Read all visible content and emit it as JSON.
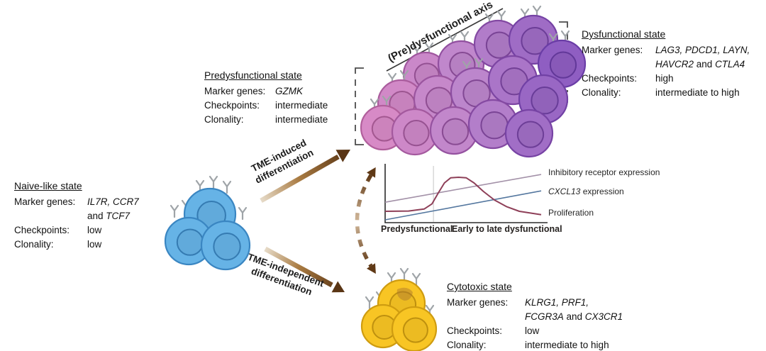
{
  "figure": {
    "axis_label": "(Pre)dysfunctional axis",
    "arrows": {
      "tme_induced": "TME-induced differentiation",
      "tme_independent": "TME-independent differentiation"
    }
  },
  "states": [
    {
      "id": "naive",
      "title": "Naive-like state",
      "rows": [
        {
          "label": "Marker genes:",
          "lines": [
            [
              {
                "t": "IL7R, CCR7",
                "i": true
              }
            ],
            [
              {
                "t": "and ",
                "i": false
              },
              {
                "t": "TCF7",
                "i": true
              }
            ]
          ]
        },
        {
          "label": "Checkpoints:",
          "lines": [
            [
              {
                "t": "low",
                "i": false
              }
            ]
          ]
        },
        {
          "label": "Clonality:",
          "lines": [
            [
              {
                "t": "low",
                "i": false
              }
            ]
          ]
        }
      ]
    },
    {
      "id": "predysfunctional",
      "title": "Predysfunctional state",
      "rows": [
        {
          "label": "Marker genes:",
          "lines": [
            [
              {
                "t": "GZMK",
                "i": true
              }
            ]
          ]
        },
        {
          "label": "Checkpoints:",
          "lines": [
            [
              {
                "t": "intermediate",
                "i": false
              }
            ]
          ]
        },
        {
          "label": "Clonality:",
          "lines": [
            [
              {
                "t": "intermediate",
                "i": false
              }
            ]
          ]
        }
      ]
    },
    {
      "id": "dysfunctional",
      "title": "Dysfunctional state",
      "rows": [
        {
          "label": "Marker genes:",
          "lines": [
            [
              {
                "t": "LAG3, PDCD1, LAYN,",
                "i": true
              }
            ],
            [
              {
                "t": "HAVCR2",
                "i": true
              },
              {
                "t": " and ",
                "i": false
              },
              {
                "t": "CTLA4",
                "i": true
              }
            ]
          ]
        },
        {
          "label": "Checkpoints:",
          "lines": [
            [
              {
                "t": "high",
                "i": false
              }
            ]
          ]
        },
        {
          "label": "Clonality:",
          "lines": [
            [
              {
                "t": "intermediate to high",
                "i": false
              }
            ]
          ]
        }
      ]
    },
    {
      "id": "cytotoxic",
      "title": "Cytotoxic state",
      "rows": [
        {
          "label": "Marker genes:",
          "lines": [
            [
              {
                "t": "KLRG1, PRF1,",
                "i": true
              }
            ],
            [
              {
                "t": "FCGR3A",
                "i": true
              },
              {
                "t": " and ",
                "i": false
              },
              {
                "t": "CX3CR1",
                "i": true
              }
            ]
          ]
        },
        {
          "label": "Checkpoints:",
          "lines": [
            [
              {
                "t": "low",
                "i": false
              }
            ]
          ]
        },
        {
          "label": "Clonality:",
          "lines": [
            [
              {
                "t": "intermediate to high",
                "i": false
              }
            ]
          ]
        }
      ]
    }
  ],
  "chart_data": {
    "type": "line",
    "x_axis_labels": [
      "Predysfunctional",
      "Early to late dysfunctional"
    ],
    "divider_x": 0.31,
    "grid": false,
    "legend_position": "right",
    "series": [
      {
        "name": "Inhibitory receptor expression",
        "name_segments": [
          {
            "t": "Inhibitory receptor expression",
            "i": false
          }
        ],
        "color": "#a391a8",
        "trend": "linear increase",
        "points": [
          [
            0,
            0.36
          ],
          [
            1,
            0.85
          ]
        ]
      },
      {
        "name": "CXCL13 expression",
        "name_segments": [
          {
            "t": "CXCL13",
            "i": true
          },
          {
            "t": " expression",
            "i": false
          }
        ],
        "color": "#54779f",
        "trend": "linear increase",
        "points": [
          [
            0,
            0.05
          ],
          [
            1,
            0.56
          ]
        ]
      },
      {
        "name": "Proliferation",
        "name_segments": [
          {
            "t": "Proliferation",
            "i": false
          }
        ],
        "color": "#8e3f58",
        "trend": "low early, peak in early dysfunctional, decline in late dysfunctional",
        "points": [
          [
            0,
            0.2
          ],
          [
            0.15,
            0.205
          ],
          [
            0.25,
            0.24
          ],
          [
            0.3,
            0.33
          ],
          [
            0.34,
            0.52
          ],
          [
            0.38,
            0.7
          ],
          [
            0.42,
            0.79
          ],
          [
            0.47,
            0.8
          ],
          [
            0.52,
            0.79
          ],
          [
            0.57,
            0.7
          ],
          [
            0.63,
            0.55
          ],
          [
            0.7,
            0.4
          ],
          [
            0.78,
            0.28
          ],
          [
            0.86,
            0.2
          ],
          [
            1,
            0.14
          ]
        ]
      }
    ]
  },
  "colors": {
    "naive_cell_fill": "#66b3e6",
    "naive_cell_stroke": "#3a86c2",
    "cytotoxic_cell_fill": "#f8c524",
    "cytotoxic_cell_stroke": "#cf9c10",
    "predys_cell_fill": "#d88ac6",
    "predys_cell_stroke": "#b2609c",
    "dys_cell_fill": "#8f5ec2",
    "dys_cell_stroke": "#6a3da6",
    "receptor_gray": "#9fa4a8",
    "arrow_dark_brown": "#5a3514",
    "arrow_light_tan": "#e9dfce",
    "bracket_gray": "#4c4c4c",
    "axis_line": "#3a3a3a",
    "chart_axis": "#2b2b2b",
    "chart_divider": "#d8d8d8"
  }
}
